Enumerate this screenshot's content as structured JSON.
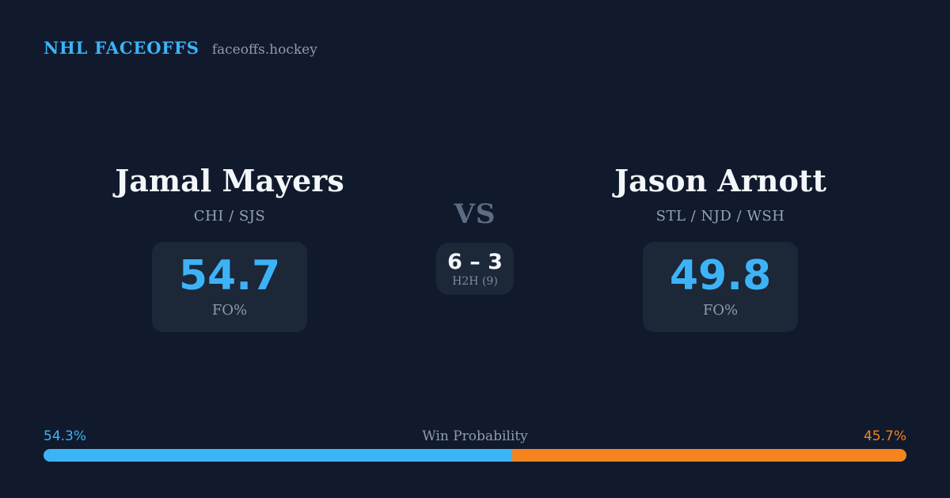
{
  "header": {
    "brand": "NHL FACEOFFS",
    "site": "faceoffs.hockey"
  },
  "players": {
    "left": {
      "name": "Jamal Mayers",
      "teams": "CHI / SJS",
      "fo_pct": "54.7",
      "fo_label": "FO%"
    },
    "right": {
      "name": "Jason Arnott",
      "teams": "STL / NJD / WSH",
      "fo_pct": "49.8",
      "fo_label": "FO%"
    }
  },
  "matchup": {
    "vs_label": "VS",
    "h2h_score": "6 – 3",
    "h2h_label": "H2H (9)"
  },
  "win_probability": {
    "title": "Win Probability",
    "left_pct_label": "54.3%",
    "right_pct_label": "45.7%",
    "left_value": 54.3,
    "right_value": 45.7
  },
  "colors": {
    "bg": "#101a2c",
    "card": "#1c2737",
    "blue": "#3db3f7",
    "orange": "#f5831e",
    "white": "#f3f6fa",
    "muted": "#8f9aab",
    "teams": "#97a3b4",
    "dim": "#5d6c83"
  }
}
